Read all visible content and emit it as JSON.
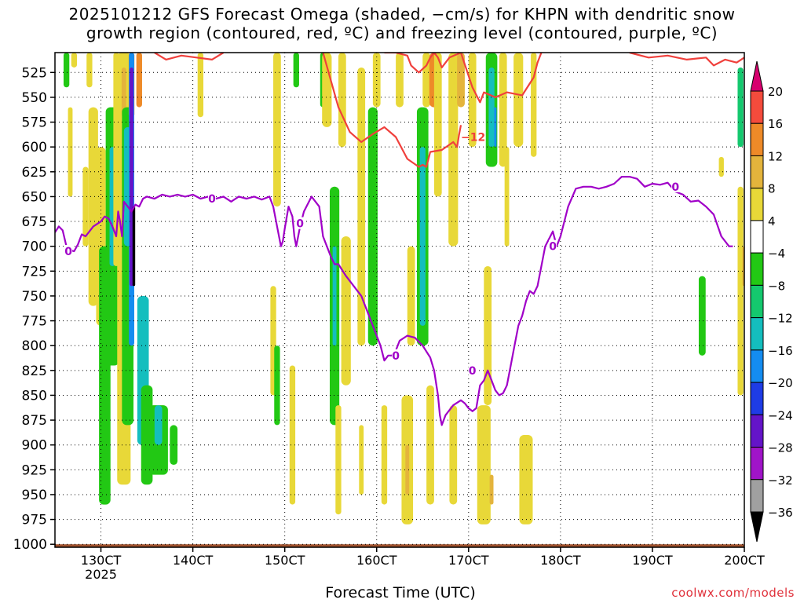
{
  "header": {
    "title_line1": "2025101212 GFS Forecast Omega (shaded, −cm/s) for KHPN with dendritic snow",
    "title_line2": "growth region (contoured, red, ºC) and freezing level (contoured, purple, ºC)"
  },
  "footer": {
    "xlabel": "Forecast Time (UTC)",
    "credit": "coolwx.com/models"
  },
  "colors": {
    "background": "#ffffff",
    "dgz_contour": "#f0403c",
    "freezing_contour": "#a000c8",
    "ground": "#a0522d"
  },
  "chart_data": {
    "type": "heatmap",
    "xlabel": "Forecast Time (UTC)",
    "ylabel": "",
    "x_ticks": [
      {
        "label": "130CT",
        "sub": "2025",
        "hour": 12
      },
      {
        "label": "140CT",
        "hour": 36
      },
      {
        "label": "150CT",
        "hour": 60
      },
      {
        "label": "160CT",
        "hour": 84
      },
      {
        "label": "170CT",
        "hour": 108
      },
      {
        "label": "180CT",
        "hour": 132
      },
      {
        "label": "190CT",
        "hour": 156
      },
      {
        "label": "200CT",
        "hour": 180
      }
    ],
    "xlim": [
      0,
      180
    ],
    "y_ticks": [
      525,
      550,
      575,
      600,
      625,
      650,
      675,
      700,
      725,
      750,
      775,
      800,
      825,
      850,
      875,
      900,
      925,
      950,
      975,
      1000
    ],
    "ylim": [
      1003,
      505
    ],
    "grid": true,
    "colorbar": {
      "labels": [
        "20",
        "16",
        "12",
        "8",
        "4",
        "−4",
        "−8",
        "−12",
        "−16",
        "−20",
        "−24",
        "−28",
        "−32",
        "−36"
      ],
      "bins": [
        {
          "color": "#d7006e",
          "shape": "arrow-top"
        },
        {
          "color": "#f44b3c"
        },
        {
          "color": "#ee8a28"
        },
        {
          "color": "#e4b43c"
        },
        {
          "color": "#e8d838"
        },
        {
          "color": "#ffffff"
        },
        {
          "color": "#22c814"
        },
        {
          "color": "#14c86e"
        },
        {
          "color": "#14bebe"
        },
        {
          "color": "#148cf0"
        },
        {
          "color": "#1e3ce6"
        },
        {
          "color": "#6414c8"
        },
        {
          "color": "#a014c8"
        },
        {
          "color": "#a0a0a0"
        },
        {
          "color": "#000000",
          "shape": "arrow-bottom"
        }
      ]
    },
    "omega_patches": [
      {
        "x": 3,
        "y0": 505,
        "y1": 540,
        "w": 1.5,
        "c": "#22c814"
      },
      {
        "x": 5,
        "y0": 505,
        "y1": 520,
        "w": 1.5,
        "c": "#e8d838"
      },
      {
        "x": 9,
        "y0": 505,
        "y1": 540,
        "w": 1.5,
        "c": "#e8d838"
      },
      {
        "x": 4,
        "y0": 560,
        "y1": 650,
        "w": 1.2,
        "c": "#e8d838"
      },
      {
        "x": 8,
        "y0": 620,
        "y1": 700,
        "w": 1.5,
        "c": "#e8d838"
      },
      {
        "x": 10,
        "y0": 560,
        "y1": 760,
        "w": 2.5,
        "c": "#e8d838"
      },
      {
        "x": 12,
        "y0": 600,
        "y1": 780,
        "w": 2.5,
        "c": "#e8d838"
      },
      {
        "x": 13,
        "y0": 700,
        "y1": 960,
        "w": 3,
        "c": "#22c814"
      },
      {
        "x": 15,
        "y0": 560,
        "y1": 820,
        "w": 3.5,
        "c": "#22c814"
      },
      {
        "x": 15,
        "y0": 600,
        "y1": 720,
        "w": 1.5,
        "c": "#14bebe"
      },
      {
        "x": 16,
        "y0": 505,
        "y1": 720,
        "w": 1.5,
        "c": "#e8d838"
      },
      {
        "x": 17,
        "y0": 640,
        "y1": 715,
        "w": 1.2,
        "c": "#ee8a28"
      },
      {
        "x": 17.5,
        "y0": 650,
        "y1": 700,
        "w": 0.6,
        "c": "#f44b3c"
      },
      {
        "x": 18,
        "y0": 505,
        "y1": 940,
        "w": 3.5,
        "c": "#e8d838"
      },
      {
        "x": 18,
        "y0": 520,
        "y1": 570,
        "w": 1.2,
        "c": "#e4b43c"
      },
      {
        "x": 19,
        "y0": 560,
        "y1": 880,
        "w": 3,
        "c": "#22c814"
      },
      {
        "x": 19,
        "y0": 580,
        "y1": 700,
        "w": 2,
        "c": "#14bebe"
      },
      {
        "x": 20,
        "y0": 505,
        "y1": 570,
        "w": 1.5,
        "c": "#ee8a28"
      },
      {
        "x": 20,
        "y0": 505,
        "y1": 800,
        "w": 1.4,
        "c": "#148cf0"
      },
      {
        "x": 20,
        "y0": 520,
        "y1": 740,
        "w": 1,
        "c": "#6414c8"
      },
      {
        "x": 20.6,
        "y0": 660,
        "y1": 740,
        "w": 0.7,
        "c": "#000000"
      },
      {
        "x": 22,
        "y0": 505,
        "y1": 560,
        "w": 1.5,
        "c": "#ee8a28"
      },
      {
        "x": 23,
        "y0": 750,
        "y1": 900,
        "w": 3,
        "c": "#14bebe"
      },
      {
        "x": 24,
        "y0": 840,
        "y1": 940,
        "w": 3,
        "c": "#22c814"
      },
      {
        "x": 27,
        "y0": 860,
        "y1": 930,
        "w": 5,
        "c": "#22c814"
      },
      {
        "x": 27,
        "y0": 860,
        "y1": 900,
        "w": 2,
        "c": "#14bebe"
      },
      {
        "x": 31,
        "y0": 880,
        "y1": 920,
        "w": 2,
        "c": "#22c814"
      },
      {
        "x": 38,
        "y0": 505,
        "y1": 570,
        "w": 1.5,
        "c": "#e8d838"
      },
      {
        "x": 58,
        "y0": 505,
        "y1": 660,
        "w": 2,
        "c": "#e8d838"
      },
      {
        "x": 57,
        "y0": 740,
        "y1": 850,
        "w": 1.5,
        "c": "#e8d838"
      },
      {
        "x": 63,
        "y0": 505,
        "y1": 540,
        "w": 1.5,
        "c": "#22c814"
      },
      {
        "x": 58,
        "y0": 800,
        "y1": 880,
        "w": 1.5,
        "c": "#22c814"
      },
      {
        "x": 70,
        "y0": 505,
        "y1": 560,
        "w": 1.5,
        "c": "#22c814"
      },
      {
        "x": 71,
        "y0": 505,
        "y1": 580,
        "w": 2.5,
        "c": "#e8d838"
      },
      {
        "x": 75,
        "y0": 505,
        "y1": 600,
        "w": 2,
        "c": "#e8d838"
      },
      {
        "x": 73,
        "y0": 640,
        "y1": 880,
        "w": 2.5,
        "c": "#22c814"
      },
      {
        "x": 73,
        "y0": 700,
        "y1": 800,
        "w": 1,
        "c": "#14bebe"
      },
      {
        "x": 76,
        "y0": 690,
        "y1": 840,
        "w": 2.5,
        "c": "#e8d838"
      },
      {
        "x": 80,
        "y0": 520,
        "y1": 800,
        "w": 2,
        "c": "#e8d838"
      },
      {
        "x": 83,
        "y0": 560,
        "y1": 800,
        "w": 2.5,
        "c": "#22c814"
      },
      {
        "x": 84,
        "y0": 505,
        "y1": 560,
        "w": 2,
        "c": "#e8d838"
      },
      {
        "x": 90,
        "y0": 505,
        "y1": 560,
        "w": 2,
        "c": "#e8d838"
      },
      {
        "x": 93,
        "y0": 700,
        "y1": 800,
        "w": 2,
        "c": "#e8d838"
      },
      {
        "x": 96,
        "y0": 560,
        "y1": 800,
        "w": 3,
        "c": "#22c814"
      },
      {
        "x": 96,
        "y0": 600,
        "y1": 780,
        "w": 1.5,
        "c": "#14bebe"
      },
      {
        "x": 97,
        "y0": 505,
        "y1": 560,
        "w": 2,
        "c": "#e8d838"
      },
      {
        "x": 99,
        "y0": 505,
        "y1": 560,
        "w": 2.5,
        "c": "#ee8a28"
      },
      {
        "x": 100,
        "y0": 505,
        "y1": 650,
        "w": 2,
        "c": "#e8d838"
      },
      {
        "x": 104,
        "y0": 505,
        "y1": 700,
        "w": 2.5,
        "c": "#e8d838"
      },
      {
        "x": 106,
        "y0": 505,
        "y1": 560,
        "w": 2,
        "c": "#e4b43c"
      },
      {
        "x": 109,
        "y0": 505,
        "y1": 600,
        "w": 2,
        "c": "#e8d838"
      },
      {
        "x": 114,
        "y0": 505,
        "y1": 620,
        "w": 3,
        "c": "#22c814"
      },
      {
        "x": 114,
        "y0": 520,
        "y1": 600,
        "w": 1.5,
        "c": "#14bebe"
      },
      {
        "x": 115,
        "y0": 560,
        "y1": 600,
        "w": 0.6,
        "c": "#148cf0"
      },
      {
        "x": 117,
        "y0": 505,
        "y1": 620,
        "w": 2,
        "c": "#e8d838"
      },
      {
        "x": 118,
        "y0": 600,
        "y1": 700,
        "w": 1.2,
        "c": "#e8d838"
      },
      {
        "x": 121,
        "y0": 505,
        "y1": 600,
        "w": 2.5,
        "c": "#e8d838"
      },
      {
        "x": 125,
        "y0": 505,
        "y1": 610,
        "w": 1.5,
        "c": "#e8d838"
      },
      {
        "x": 62,
        "y0": 820,
        "y1": 960,
        "w": 1.5,
        "c": "#e8d838"
      },
      {
        "x": 74,
        "y0": 860,
        "y1": 970,
        "w": 1.5,
        "c": "#e8d838"
      },
      {
        "x": 80,
        "y0": 880,
        "y1": 950,
        "w": 1.2,
        "c": "#e8d838"
      },
      {
        "x": 86,
        "y0": 860,
        "y1": 960,
        "w": 1.5,
        "c": "#e8d838"
      },
      {
        "x": 92,
        "y0": 850,
        "y1": 980,
        "w": 3,
        "c": "#e8d838"
      },
      {
        "x": 92,
        "y0": 900,
        "y1": 950,
        "w": 1,
        "c": "#e4b43c"
      },
      {
        "x": 98,
        "y0": 840,
        "y1": 960,
        "w": 2,
        "c": "#e8d838"
      },
      {
        "x": 104,
        "y0": 860,
        "y1": 960,
        "w": 2,
        "c": "#e8d838"
      },
      {
        "x": 112,
        "y0": 860,
        "y1": 980,
        "w": 3.5,
        "c": "#e8d838"
      },
      {
        "x": 114,
        "y0": 930,
        "y1": 960,
        "w": 1,
        "c": "#e4b43c"
      },
      {
        "x": 123,
        "y0": 890,
        "y1": 980,
        "w": 3.5,
        "c": "#e8d838"
      },
      {
        "x": 113,
        "y0": 720,
        "y1": 860,
        "w": 2,
        "c": "#e8d838"
      },
      {
        "x": 169,
        "y0": 730,
        "y1": 810,
        "w": 1.8,
        "c": "#22c814"
      },
      {
        "x": 174,
        "y0": 610,
        "y1": 630,
        "w": 1.3,
        "c": "#e8d838"
      },
      {
        "x": 179,
        "y0": 640,
        "y1": 850,
        "w": 1.5,
        "c": "#e8d838"
      },
      {
        "x": 179,
        "y0": 520,
        "y1": 600,
        "w": 1.5,
        "c": "#14c86e"
      },
      {
        "x": 180,
        "y0": 700,
        "y1": 740,
        "w": 1,
        "c": "#e4b43c"
      }
    ],
    "dgz_contour": {
      "label": "−12",
      "label_at": {
        "hour": 106,
        "p": 590
      },
      "segments": [
        {
          "hour": [
            26,
            29,
            33,
            37,
            41,
            44
          ],
          "p": [
            505,
            512,
            508,
            510,
            512,
            505
          ]
        },
        {
          "hour": [
            70,
            74,
            77,
            80,
            83,
            86,
            89,
            92,
            95,
            96,
            97,
            98,
            101,
            104,
            105,
            105.5,
            106
          ],
          "p": [
            505,
            560,
            585,
            595,
            587,
            580,
            590,
            612,
            620,
            618,
            620,
            605,
            603,
            595,
            600,
            588,
            578
          ]
        },
        {
          "hour": [
            86,
            89,
            92,
            93,
            95,
            97,
            98,
            99,
            100,
            101,
            103,
            106,
            109,
            111,
            112,
            115,
            118,
            122,
            125,
            126,
            127
          ],
          "p": [
            505,
            505,
            508,
            518,
            525,
            518,
            510,
            505,
            510,
            520,
            510,
            505,
            540,
            555,
            545,
            550,
            545,
            548,
            530,
            515,
            505
          ]
        },
        {
          "hour": [
            150,
            155,
            160,
            165,
            170,
            172,
            175,
            178,
            180
          ],
          "p": [
            505,
            510,
            508,
            512,
            510,
            518,
            512,
            515,
            510
          ]
        }
      ]
    },
    "freezing_contour": {
      "label": "0",
      "labels_at": [
        {
          "hour": 3.5,
          "p": 705
        },
        {
          "hour": 41,
          "p": 652
        },
        {
          "hour": 64,
          "p": 677
        },
        {
          "hour": 89,
          "p": 810
        },
        {
          "hour": 109,
          "p": 825
        },
        {
          "hour": 130,
          "p": 700
        },
        {
          "hour": 162,
          "p": 640
        }
      ],
      "hour": [
        0,
        1,
        2,
        3,
        4,
        5,
        6,
        7,
        8,
        10,
        12,
        13,
        14,
        15,
        16,
        16.5,
        17,
        17.5,
        18,
        19,
        20,
        21,
        22,
        23,
        24,
        26,
        28,
        30,
        32,
        34,
        36,
        38,
        40,
        42,
        44,
        46,
        48,
        50,
        52,
        54,
        56,
        57,
        58,
        59,
        59.5,
        60,
        61,
        62,
        62.5,
        63,
        64,
        65,
        67,
        69,
        70,
        71,
        72,
        73,
        74,
        76,
        78,
        80,
        82,
        84,
        85,
        86,
        87,
        88,
        89,
        90,
        92,
        94,
        96,
        98,
        99,
        100,
        100.5,
        101,
        102,
        104,
        106,
        107,
        108,
        109,
        110,
        111,
        112,
        113,
        114,
        115,
        116,
        117,
        118,
        119,
        120,
        121,
        122,
        123,
        124,
        125,
        126,
        127,
        128,
        130,
        131,
        132,
        134,
        136,
        138,
        140,
        142,
        144,
        146,
        148,
        150,
        152,
        154,
        156,
        158,
        160,
        162,
        164,
        166,
        168,
        170,
        172,
        174,
        176,
        177,
        178,
        179,
        180
      ],
      "p": [
        686,
        680,
        684,
        700,
        704,
        705,
        698,
        688,
        690,
        680,
        675,
        670,
        672,
        680,
        690,
        665,
        675,
        690,
        655,
        660,
        665,
        658,
        660,
        652,
        650,
        652,
        648,
        650,
        648,
        650,
        648,
        652,
        650,
        652,
        650,
        655,
        650,
        652,
        650,
        653,
        650,
        660,
        680,
        700,
        695,
        682,
        660,
        670,
        690,
        700,
        680,
        665,
        650,
        660,
        690,
        700,
        710,
        718,
        718,
        730,
        740,
        750,
        770,
        790,
        800,
        815,
        810,
        810,
        805,
        795,
        790,
        792,
        800,
        812,
        825,
        850,
        870,
        880,
        870,
        860,
        855,
        858,
        863,
        866,
        863,
        840,
        835,
        825,
        835,
        845,
        850,
        848,
        840,
        820,
        800,
        780,
        770,
        755,
        745,
        748,
        740,
        720,
        700,
        685,
        700,
        690,
        660,
        642,
        640,
        640,
        642,
        640,
        637,
        630,
        630,
        632,
        640,
        637,
        638,
        636,
        645,
        648,
        655,
        654,
        660,
        668,
        690,
        700,
        700
      ]
    }
  }
}
